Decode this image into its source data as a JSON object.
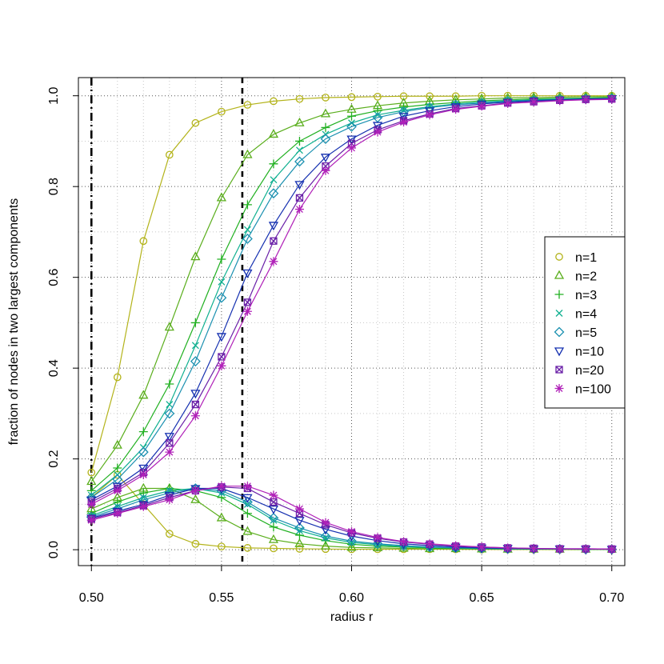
{
  "chart_data": {
    "type": "line",
    "title": "",
    "xlabel": "radius r",
    "ylabel": "fraction of nodes in two largest components",
    "xlim": [
      0.495,
      0.705
    ],
    "ylim": [
      -0.035,
      1.04
    ],
    "x_ticks": [
      "0.50",
      "0.55",
      "0.60",
      "0.65",
      "0.70"
    ],
    "y_ticks": [
      "0.0",
      "0.2",
      "0.4",
      "0.6",
      "0.8",
      "1.0"
    ],
    "grid": true,
    "legend_position": "right",
    "vlines": [
      {
        "x": 0.5,
        "style": "dash-dot"
      },
      {
        "x": 0.558,
        "style": "dashed"
      }
    ],
    "x": [
      0.5,
      0.51,
      0.52,
      0.53,
      0.54,
      0.55,
      0.56,
      0.57,
      0.58,
      0.59,
      0.6,
      0.61,
      0.62,
      0.63,
      0.64,
      0.65,
      0.66,
      0.67,
      0.68,
      0.69,
      0.7
    ],
    "series": [
      {
        "name": "n=1",
        "color": "#b3b31a",
        "marker": "circle",
        "largest": [
          0.17,
          0.38,
          0.68,
          0.87,
          0.94,
          0.965,
          0.98,
          0.988,
          0.993,
          0.996,
          0.997,
          0.998,
          0.999,
          0.999,
          0.999,
          1.0,
          1.0,
          1.0,
          1.0,
          1.0,
          1.0
        ],
        "second": [
          0.115,
          0.165,
          0.1,
          0.035,
          0.013,
          0.007,
          0.004,
          0.003,
          0.002,
          0.0015,
          0.001,
          0.001,
          0.001,
          0.001,
          0.0008,
          0.0006,
          0.0005,
          0.0004,
          0.0003,
          0.0003,
          0.0002
        ]
      },
      {
        "name": "n=2",
        "color": "#5aae1c",
        "marker": "triangle-up",
        "largest": [
          0.15,
          0.23,
          0.34,
          0.49,
          0.645,
          0.775,
          0.87,
          0.915,
          0.94,
          0.96,
          0.97,
          0.978,
          0.984,
          0.988,
          0.991,
          0.993,
          0.995,
          0.996,
          0.997,
          0.998,
          0.998
        ],
        "second": [
          0.09,
          0.115,
          0.135,
          0.135,
          0.11,
          0.07,
          0.04,
          0.022,
          0.013,
          0.008,
          0.005,
          0.004,
          0.003,
          0.002,
          0.002,
          0.0015,
          0.001,
          0.001,
          0.001,
          0.001,
          0.001
        ]
      },
      {
        "name": "n=3",
        "color": "#20b020",
        "marker": "plus",
        "largest": [
          0.13,
          0.18,
          0.26,
          0.365,
          0.5,
          0.64,
          0.76,
          0.85,
          0.9,
          0.93,
          0.955,
          0.967,
          0.975,
          0.981,
          0.985,
          0.989,
          0.991,
          0.993,
          0.994,
          0.995,
          0.996
        ],
        "second": [
          0.08,
          0.105,
          0.125,
          0.135,
          0.13,
          0.115,
          0.08,
          0.05,
          0.032,
          0.02,
          0.012,
          0.008,
          0.006,
          0.004,
          0.003,
          0.002,
          0.002,
          0.0015,
          0.001,
          0.001,
          0.001
        ]
      },
      {
        "name": "n=4",
        "color": "#10b090",
        "marker": "cross",
        "largest": [
          0.12,
          0.165,
          0.225,
          0.32,
          0.45,
          0.59,
          0.705,
          0.815,
          0.88,
          0.915,
          0.94,
          0.958,
          0.968,
          0.976,
          0.982,
          0.986,
          0.989,
          0.991,
          0.993,
          0.994,
          0.995
        ],
        "second": [
          0.075,
          0.095,
          0.115,
          0.13,
          0.135,
          0.125,
          0.1,
          0.065,
          0.042,
          0.026,
          0.016,
          0.011,
          0.007,
          0.005,
          0.004,
          0.003,
          0.002,
          0.002,
          0.0015,
          0.001,
          0.001
        ]
      },
      {
        "name": "n=5",
        "color": "#1a90b0",
        "marker": "diamond",
        "largest": [
          0.115,
          0.155,
          0.215,
          0.3,
          0.415,
          0.555,
          0.685,
          0.785,
          0.855,
          0.905,
          0.932,
          0.952,
          0.965,
          0.974,
          0.98,
          0.984,
          0.988,
          0.99,
          0.992,
          0.993,
          0.994
        ],
        "second": [
          0.072,
          0.09,
          0.11,
          0.125,
          0.135,
          0.13,
          0.105,
          0.07,
          0.048,
          0.03,
          0.019,
          0.013,
          0.009,
          0.006,
          0.004,
          0.003,
          0.002,
          0.002,
          0.0015,
          0.001,
          0.001
        ]
      },
      {
        "name": "n=10",
        "color": "#1530b0",
        "marker": "triangle-down",
        "largest": [
          0.11,
          0.14,
          0.18,
          0.25,
          0.345,
          0.47,
          0.61,
          0.715,
          0.805,
          0.865,
          0.905,
          0.935,
          0.955,
          0.967,
          0.976,
          0.982,
          0.986,
          0.989,
          0.991,
          0.993,
          0.994
        ],
        "second": [
          0.07,
          0.085,
          0.1,
          0.12,
          0.135,
          0.135,
          0.115,
          0.09,
          0.065,
          0.045,
          0.03,
          0.02,
          0.013,
          0.009,
          0.006,
          0.004,
          0.003,
          0.002,
          0.002,
          0.0015,
          0.001
        ]
      },
      {
        "name": "n=20",
        "color": "#6a20a8",
        "marker": "square-x",
        "largest": [
          0.105,
          0.135,
          0.17,
          0.235,
          0.32,
          0.425,
          0.545,
          0.68,
          0.775,
          0.845,
          0.895,
          0.925,
          0.945,
          0.96,
          0.972,
          0.978,
          0.984,
          0.987,
          0.99,
          0.992,
          0.993
        ],
        "second": [
          0.068,
          0.082,
          0.097,
          0.115,
          0.13,
          0.138,
          0.135,
          0.105,
          0.08,
          0.055,
          0.037,
          0.025,
          0.017,
          0.012,
          0.008,
          0.006,
          0.004,
          0.003,
          0.002,
          0.002,
          0.0015
        ]
      },
      {
        "name": "n=100",
        "color": "#b020b8",
        "marker": "asterisk",
        "largest": [
          0.1,
          0.13,
          0.165,
          0.215,
          0.295,
          0.405,
          0.525,
          0.635,
          0.75,
          0.835,
          0.885,
          0.92,
          0.942,
          0.958,
          0.97,
          0.977,
          0.983,
          0.986,
          0.989,
          0.991,
          0.992
        ],
        "second": [
          0.065,
          0.08,
          0.095,
          0.11,
          0.13,
          0.14,
          0.14,
          0.12,
          0.09,
          0.06,
          0.04,
          0.027,
          0.018,
          0.013,
          0.009,
          0.006,
          0.004,
          0.003,
          0.002,
          0.002,
          0.0015
        ]
      }
    ]
  }
}
